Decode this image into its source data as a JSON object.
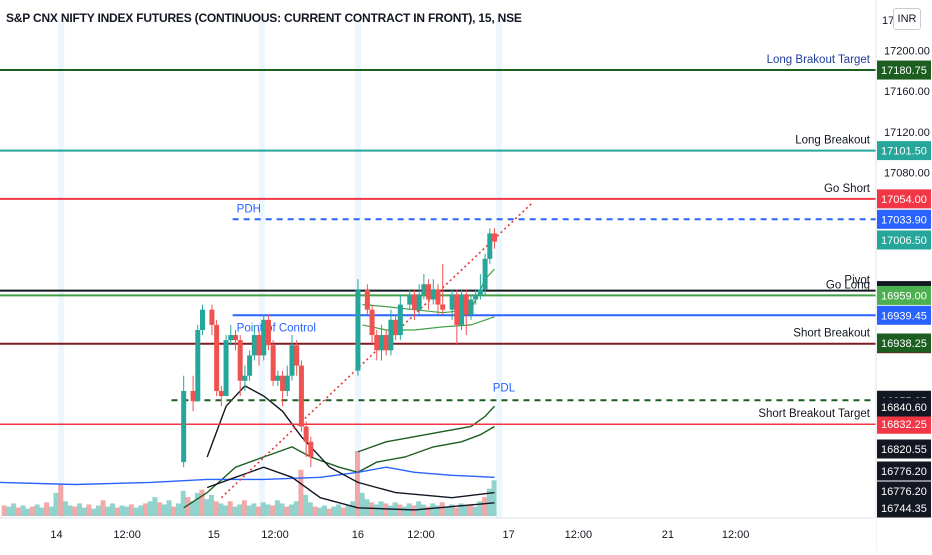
{
  "header": {
    "title": "S&P CNX NIFTY INDEX FUTURES (CONTINUOUS: CURRENT CONTRACT IN FRONT), 15, NSE",
    "currency": "INR"
  },
  "chart_data": {
    "type": "candlestick",
    "ylim": [
      16740,
      17230
    ],
    "yticks": [
      "17200.00",
      "17160.00",
      "17120.00",
      "17080.00"
    ],
    "x_start": 0,
    "x_end": 93,
    "xticks": [
      {
        "x": 6,
        "label": "14"
      },
      {
        "x": 13.5,
        "label": "12:00"
      },
      {
        "x": 22.7,
        "label": "15"
      },
      {
        "x": 29.2,
        "label": "12:00"
      },
      {
        "x": 38,
        "label": "16"
      },
      {
        "x": 44.7,
        "label": "12:00"
      },
      {
        "x": 54,
        "label": "17"
      },
      {
        "x": 61.4,
        "label": "12:00"
      },
      {
        "x": 70.9,
        "label": "21"
      },
      {
        "x": 78.1,
        "label": "12:00"
      }
    ],
    "session_markers": [
      6.5,
      27.8,
      38,
      53
    ],
    "candles": [
      [
        19.5,
        16795,
        16865,
        16790,
        16880
      ],
      [
        20.5,
        16865,
        16855,
        16845,
        16880
      ],
      [
        21.0,
        16855,
        16925,
        16855,
        16930
      ],
      [
        21.5,
        16925,
        16945,
        16920,
        16950
      ],
      [
        22.5,
        16945,
        16930,
        16920,
        16950
      ],
      [
        23.0,
        16930,
        16865,
        16860,
        16935
      ],
      [
        23.5,
        16865,
        16860,
        16850,
        16870
      ],
      [
        24.0,
        16860,
        16915,
        16860,
        16920
      ],
      [
        24.5,
        16915,
        16920,
        16910,
        16930
      ],
      [
        25.0,
        16920,
        16915,
        16905,
        16925
      ],
      [
        25.5,
        16915,
        16875,
        16860,
        16920
      ],
      [
        26.0,
        16875,
        16880,
        16865,
        16890
      ],
      [
        26.5,
        16880,
        16900,
        16875,
        16905
      ],
      [
        27.0,
        16900,
        16920,
        16895,
        16930
      ],
      [
        27.5,
        16920,
        16900,
        16890,
        16925
      ],
      [
        28.0,
        16900,
        16935,
        16895,
        16940
      ],
      [
        28.5,
        16935,
        16910,
        16905,
        16940
      ],
      [
        29.0,
        16910,
        16875,
        16870,
        16915
      ],
      [
        29.5,
        16875,
        16880,
        16870,
        16885
      ],
      [
        30.0,
        16880,
        16865,
        16850,
        16885
      ],
      [
        30.5,
        16865,
        16880,
        16860,
        16890
      ],
      [
        31.0,
        16880,
        16910,
        16875,
        16920
      ],
      [
        31.5,
        16910,
        16890,
        16880,
        16915
      ],
      [
        32.0,
        16890,
        16830,
        16825,
        16895
      ],
      [
        32.5,
        16830,
        16815,
        16800,
        16835
      ],
      [
        33.0,
        16815,
        16800,
        16790,
        16820
      ],
      [
        38.0,
        16885,
        16965,
        16880,
        16975
      ],
      [
        39.0,
        16965,
        16945,
        16940,
        16970
      ],
      [
        39.5,
        16945,
        16920,
        16910,
        16950
      ],
      [
        40.0,
        16920,
        16905,
        16895,
        16925
      ],
      [
        40.5,
        16905,
        16920,
        16895,
        16930
      ],
      [
        41.0,
        16920,
        16905,
        16900,
        16925
      ],
      [
        41.5,
        16905,
        16935,
        16900,
        16945
      ],
      [
        42.0,
        16935,
        16920,
        16915,
        16940
      ],
      [
        42.5,
        16920,
        16950,
        16915,
        16960
      ],
      [
        43.5,
        16950,
        16960,
        16945,
        16965
      ],
      [
        44.0,
        16960,
        16945,
        16935,
        16965
      ],
      [
        44.5,
        16945,
        16960,
        16940,
        16970
      ],
      [
        45.0,
        16960,
        16970,
        16955,
        16980
      ],
      [
        45.5,
        16970,
        16955,
        16945,
        16975
      ],
      [
        46.0,
        16955,
        16965,
        16950,
        16975
      ],
      [
        46.5,
        16965,
        16950,
        16940,
        16970
      ],
      [
        47.0,
        16950,
        16945,
        16940,
        16990
      ],
      [
        48.0,
        16945,
        16960,
        16935,
        16965
      ],
      [
        48.5,
        16960,
        16930,
        16910,
        16965
      ],
      [
        49.0,
        16930,
        16960,
        16925,
        16965
      ],
      [
        49.5,
        16960,
        16940,
        16920,
        16965
      ],
      [
        50.0,
        16940,
        16955,
        16935,
        16960
      ],
      [
        50.5,
        16955,
        16960,
        16950,
        16965
      ],
      [
        51.0,
        16960,
        16965,
        16955,
        16980
      ],
      [
        51.5,
        16965,
        16995,
        16960,
        17000
      ],
      [
        52.0,
        16995,
        17020,
        16990,
        17025
      ],
      [
        52.5,
        17020,
        17012,
        17005,
        17025
      ]
    ],
    "price_levels": [
      {
        "value": 17180.75,
        "label": "Long Brakout Target",
        "text_color": "#1e3d9c",
        "color": "#1b5e20",
        "tag_color": "#1b5e20",
        "tag": "17180.75",
        "style": "solid",
        "start": 0,
        "width": 2
      },
      {
        "value": 17101.5,
        "label": "Long Breakout",
        "text_color": "#131722",
        "color": "#26a69a",
        "tag_color": "#26a69a",
        "tag": "17101.50",
        "style": "solid",
        "start": 0,
        "width": 2
      },
      {
        "value": 17054.0,
        "label": "Go Short",
        "text_color": "#131722",
        "color": "#f23645",
        "tag_color": "#f23645",
        "tag": "17054.00",
        "style": "solid",
        "start": 0,
        "width": 2
      },
      {
        "value": 17033.9,
        "label": "PDH",
        "text_color": "#2962ff",
        "color": "#2962ff",
        "tag_color": "#2962ff",
        "tag": "17033.90",
        "style": "dashed",
        "start": 24.7,
        "width": 2
      },
      {
        "value": 16963.75,
        "label": "Pivot",
        "text_color": "#131722",
        "color": "#131722",
        "tag_color": "#131722",
        "tag": "16963.75",
        "style": "solid",
        "start": 0,
        "width": 2
      },
      {
        "value": 16959.0,
        "label": "Go Long",
        "text_color": "#131722",
        "color": "#43a047",
        "tag_color": "#4caf50",
        "tag": "16959.00",
        "style": "solid",
        "start": 0,
        "width": 2
      },
      {
        "value": 16939.45,
        "label": "Point of Control",
        "text_color": "#2962ff",
        "color": "#2962ff",
        "tag_color": "#2962ff",
        "tag": "16939.45",
        "style": "solid",
        "start": 24.7,
        "width": 2
      },
      {
        "value": 16911.5,
        "label": "Short Breakout",
        "text_color": "#131722",
        "color": "#801922",
        "tag_color": "#801922",
        "tag": "16911.50",
        "style": "solid",
        "start": 0,
        "width": 2
      },
      {
        "value": 16855.85,
        "label": "PDL",
        "text_color": "#2962ff",
        "color": "#1b5e20",
        "tag_color": "#131722",
        "tag": "16855.85",
        "style": "dashed",
        "start": 18.2,
        "width": 2
      },
      {
        "value": 16832.25,
        "label": "Short Breakout Target",
        "text_color": "#131722",
        "color": "#f23645",
        "tag_color": "#f23645",
        "tag": "16832.25",
        "style": "solid",
        "start": 0,
        "width": 1.5
      }
    ],
    "extra_price_tags": [
      {
        "value": 17006.5,
        "tag": "17006.50",
        "color": "#26a69a"
      },
      {
        "value": 16938.25,
        "tag": "16938.25",
        "color": "#1b5e20"
      },
      {
        "value": 16840.6,
        "tag": "16840.60",
        "color": "#131722"
      },
      {
        "value": 16820.55,
        "tag": "16820.55",
        "color": "#131722"
      },
      {
        "value": 16776.2,
        "tag": "16776.20",
        "color": "#131722"
      },
      {
        "value": 16776.2,
        "tag": "16776.20",
        "color": "#131722"
      },
      {
        "value": 16744.35,
        "tag": "16744.35",
        "color": "#131722"
      }
    ],
    "top_axis_partial": "17",
    "trendline": {
      "from": [
        23.5,
        16760
      ],
      "to": [
        56.5,
        17050
      ],
      "color": "#e53935"
    },
    "vwap_band": {
      "color": "#43a047",
      "points": [
        [
          38.5,
          16950
        ],
        [
          41,
          16948
        ],
        [
          44,
          16945
        ],
        [
          47,
          16942
        ],
        [
          50,
          16945
        ],
        [
          51.5,
          16975
        ],
        [
          52.5,
          16985
        ]
      ]
    },
    "vwap_band_lower": {
      "color": "#43a047",
      "points": [
        [
          38.5,
          16930
        ],
        [
          41,
          16925
        ],
        [
          44,
          16925
        ],
        [
          47,
          16928
        ],
        [
          50,
          16930
        ],
        [
          52.5,
          16938
        ]
      ]
    },
    "curves": [
      {
        "color": "#1b5e20",
        "width": 1.4,
        "points": [
          [
            19.5,
            16750
          ],
          [
            22,
            16765
          ],
          [
            25,
            16790
          ],
          [
            28,
            16800
          ],
          [
            31,
            16810
          ],
          [
            33,
            16800
          ],
          [
            36,
            16790
          ],
          [
            38,
            16785
          ],
          [
            40,
            16795
          ],
          [
            43,
            16800
          ],
          [
            46,
            16810
          ],
          [
            49,
            16815
          ],
          [
            51,
            16822
          ],
          [
            52.5,
            16830
          ]
        ]
      },
      {
        "color": "#1b5e20",
        "width": 1.4,
        "points": [
          [
            38,
            16805
          ],
          [
            41,
            16815
          ],
          [
            44,
            16820
          ],
          [
            47,
            16825
          ],
          [
            50,
            16830
          ],
          [
            51.5,
            16840
          ],
          [
            52.5,
            16850
          ]
        ]
      },
      {
        "color": "#2962ff",
        "width": 1.4,
        "points": [
          [
            0,
            16775
          ],
          [
            8,
            16773
          ],
          [
            16,
            16775
          ],
          [
            22,
            16778
          ],
          [
            28,
            16778
          ],
          [
            34,
            16780
          ],
          [
            38,
            16785
          ],
          [
            41,
            16790
          ],
          [
            44,
            16785
          ],
          [
            48,
            16782
          ],
          [
            52.5,
            16780
          ]
        ]
      },
      {
        "color": "#131722",
        "width": 1.4,
        "points": [
          [
            22,
            16800
          ],
          [
            24,
            16850
          ],
          [
            26,
            16870
          ],
          [
            28,
            16860
          ],
          [
            30,
            16845
          ],
          [
            32,
            16820
          ],
          [
            35,
            16790
          ],
          [
            38,
            16775
          ],
          [
            42,
            16765
          ],
          [
            48,
            16760
          ],
          [
            52.5,
            16765
          ]
        ]
      },
      {
        "color": "#131722",
        "width": 1.4,
        "points": [
          [
            22,
            16770
          ],
          [
            25,
            16780
          ],
          [
            28,
            16790
          ],
          [
            31,
            16780
          ],
          [
            34,
            16760
          ],
          [
            38,
            16750
          ],
          [
            44,
            16748
          ],
          [
            52.5,
            16755
          ]
        ]
      }
    ],
    "volume": [
      [
        0.5,
        10
      ],
      [
        1,
        9
      ],
      [
        1.5,
        12
      ],
      [
        2,
        8
      ],
      [
        2.5,
        10
      ],
      [
        3,
        7
      ],
      [
        3.5,
        9
      ],
      [
        4,
        11
      ],
      [
        4.5,
        8
      ],
      [
        5,
        13
      ],
      [
        5.5,
        9
      ],
      [
        6,
        22
      ],
      [
        6.5,
        31
      ],
      [
        7,
        14
      ],
      [
        7.5,
        10
      ],
      [
        8,
        9
      ],
      [
        8.5,
        12
      ],
      [
        9,
        8
      ],
      [
        9.5,
        11
      ],
      [
        10,
        7
      ],
      [
        10.5,
        10
      ],
      [
        11,
        15
      ],
      [
        11.5,
        9
      ],
      [
        12,
        12
      ],
      [
        12.5,
        8
      ],
      [
        13,
        10
      ],
      [
        13.5,
        9
      ],
      [
        14,
        11
      ],
      [
        14.5,
        8
      ],
      [
        15,
        10
      ],
      [
        15.5,
        12
      ],
      [
        16,
        14
      ],
      [
        16.5,
        18
      ],
      [
        17,
        13
      ],
      [
        17.5,
        11
      ],
      [
        18,
        15
      ],
      [
        18.5,
        9
      ],
      [
        19,
        12
      ],
      [
        19.5,
        24
      ],
      [
        20,
        18
      ],
      [
        20.5,
        14
      ],
      [
        21,
        22
      ],
      [
        21.5,
        25
      ],
      [
        22,
        16
      ],
      [
        22.5,
        20
      ],
      [
        23,
        14
      ],
      [
        23.5,
        12
      ],
      [
        24,
        10
      ],
      [
        24.5,
        14
      ],
      [
        25,
        9
      ],
      [
        25.5,
        11
      ],
      [
        26,
        15
      ],
      [
        26.5,
        10
      ],
      [
        27,
        12
      ],
      [
        27.5,
        9
      ],
      [
        28,
        13
      ],
      [
        28.5,
        11
      ],
      [
        29,
        10
      ],
      [
        29.5,
        15
      ],
      [
        30,
        12
      ],
      [
        30.5,
        9
      ],
      [
        31,
        11
      ],
      [
        31.5,
        14
      ],
      [
        32,
        44
      ],
      [
        32.5,
        20
      ],
      [
        33,
        13
      ],
      [
        33.5,
        9
      ],
      [
        34,
        8
      ],
      [
        34.5,
        10
      ],
      [
        35,
        7
      ],
      [
        35.5,
        9
      ],
      [
        36,
        11
      ],
      [
        36.5,
        8
      ],
      [
        37,
        10
      ],
      [
        37.5,
        14
      ],
      [
        38,
        62
      ],
      [
        38.5,
        22
      ],
      [
        39,
        16
      ],
      [
        39.5,
        13
      ],
      [
        40,
        11
      ],
      [
        40.5,
        14
      ],
      [
        41,
        12
      ],
      [
        41.5,
        10
      ],
      [
        42,
        13
      ],
      [
        42.5,
        11
      ],
      [
        43,
        9
      ],
      [
        43.5,
        12
      ],
      [
        44,
        10
      ],
      [
        44.5,
        14
      ],
      [
        45,
        11
      ],
      [
        45.5,
        9
      ],
      [
        46,
        12
      ],
      [
        46.5,
        10
      ],
      [
        47,
        13
      ],
      [
        47.5,
        9
      ],
      [
        48,
        11
      ],
      [
        48.5,
        8
      ],
      [
        49,
        12
      ],
      [
        49.5,
        10
      ],
      [
        50,
        11
      ],
      [
        50.5,
        9
      ],
      [
        51,
        14
      ],
      [
        51.5,
        18
      ],
      [
        52,
        26
      ],
      [
        52.5,
        34
      ]
    ]
  }
}
